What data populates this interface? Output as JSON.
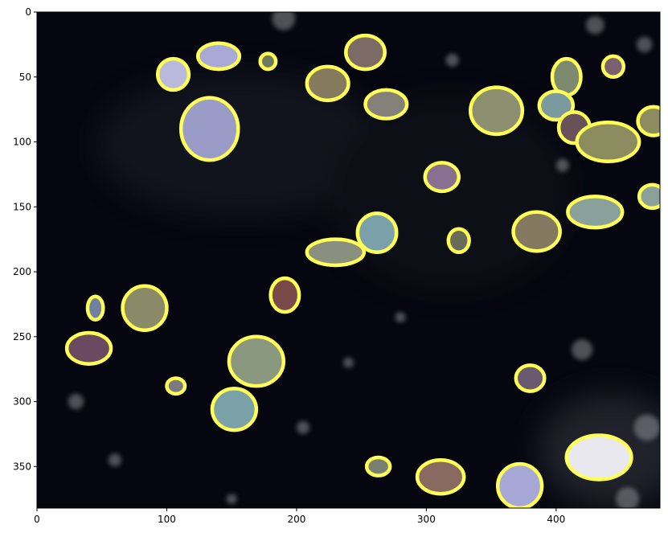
{
  "chart_data": {
    "type": "image",
    "title": "",
    "xlabel": "",
    "ylabel": "",
    "xlim": [
      0,
      480
    ],
    "ylim": [
      382,
      0
    ],
    "x_ticks": [
      "0",
      "100",
      "200",
      "300",
      "400"
    ],
    "y_ticks": [
      "0",
      "50",
      "100",
      "150",
      "200",
      "250",
      "300",
      "350"
    ],
    "x_tick_values": [
      0,
      100,
      200,
      300,
      400
    ],
    "y_tick_values": [
      0,
      50,
      100,
      150,
      200,
      250,
      300,
      350
    ]
  },
  "image": {
    "background_color": "#05060f",
    "outline_color": "#ffff55",
    "cells": [
      {
        "cx": 105,
        "cy": 48,
        "rx": 12,
        "ry": 12,
        "fill": "#b9b9dc"
      },
      {
        "cx": 140,
        "cy": 34,
        "rx": 16,
        "ry": 10,
        "fill": "#a9a9d8"
      },
      {
        "cx": 178,
        "cy": 38,
        "rx": 6,
        "ry": 6,
        "fill": "#6f7a5e"
      },
      {
        "cx": 253,
        "cy": 31,
        "rx": 15,
        "ry": 13,
        "fill": "#7b6a65"
      },
      {
        "cx": 224,
        "cy": 55,
        "rx": 16,
        "ry": 13,
        "fill": "#857a5e"
      },
      {
        "cx": 269,
        "cy": 71,
        "rx": 16,
        "ry": 11,
        "fill": "#85807a"
      },
      {
        "cx": 133,
        "cy": 90,
        "rx": 22,
        "ry": 24,
        "fill": "#9b9bc8"
      },
      {
        "cx": 354,
        "cy": 76,
        "rx": 20,
        "ry": 18,
        "fill": "#8c9070"
      },
      {
        "cx": 408,
        "cy": 50,
        "rx": 11,
        "ry": 14,
        "fill": "#7d8a70"
      },
      {
        "cx": 444,
        "cy": 42,
        "rx": 8,
        "ry": 8,
        "fill": "#7a6070"
      },
      {
        "cx": 400,
        "cy": 72,
        "rx": 13,
        "ry": 11,
        "fill": "#7a9aa0"
      },
      {
        "cx": 414,
        "cy": 89,
        "rx": 12,
        "ry": 12,
        "fill": "#6a5058"
      },
      {
        "cx": 440,
        "cy": 100,
        "rx": 24,
        "ry": 15,
        "fill": "#8c8c60"
      },
      {
        "cx": 475,
        "cy": 84,
        "rx": 12,
        "ry": 11,
        "fill": "#8c8c60"
      },
      {
        "cx": 312,
        "cy": 127,
        "rx": 13,
        "ry": 11,
        "fill": "#8a7090"
      },
      {
        "cx": 430,
        "cy": 154,
        "rx": 21,
        "ry": 12,
        "fill": "#8aa09a"
      },
      {
        "cx": 385,
        "cy": 169,
        "rx": 18,
        "ry": 15,
        "fill": "#857860"
      },
      {
        "cx": 474,
        "cy": 142,
        "rx": 10,
        "ry": 9,
        "fill": "#8aa09a"
      },
      {
        "cx": 262,
        "cy": 170,
        "rx": 15,
        "ry": 15,
        "fill": "#7aa0aa"
      },
      {
        "cx": 230,
        "cy": 185,
        "rx": 22,
        "ry": 10,
        "fill": "#8a9080"
      },
      {
        "cx": 325,
        "cy": 176,
        "rx": 8,
        "ry": 9,
        "fill": "#6a6a58"
      },
      {
        "cx": 191,
        "cy": 218,
        "rx": 11,
        "ry": 13,
        "fill": "#7a4a48"
      },
      {
        "cx": 45,
        "cy": 228,
        "rx": 6,
        "ry": 9,
        "fill": "#7080a0"
      },
      {
        "cx": 83,
        "cy": 228,
        "rx": 17,
        "ry": 17,
        "fill": "#8a8a68"
      },
      {
        "cx": 40,
        "cy": 259,
        "rx": 17,
        "ry": 12,
        "fill": "#6a4a60"
      },
      {
        "cx": 169,
        "cy": 269,
        "rx": 21,
        "ry": 19,
        "fill": "#8a9880"
      },
      {
        "cx": 107,
        "cy": 288,
        "rx": 7,
        "ry": 6,
        "fill": "#7a7a80"
      },
      {
        "cx": 152,
        "cy": 306,
        "rx": 17,
        "ry": 16,
        "fill": "#7aa0a8"
      },
      {
        "cx": 380,
        "cy": 282,
        "rx": 11,
        "ry": 10,
        "fill": "#6a5a70"
      },
      {
        "cx": 263,
        "cy": 350,
        "rx": 9,
        "ry": 7,
        "fill": "#7a8070"
      },
      {
        "cx": 311,
        "cy": 358,
        "rx": 18,
        "ry": 13,
        "fill": "#8a6a60"
      },
      {
        "cx": 372,
        "cy": 365,
        "rx": 17,
        "ry": 17,
        "fill": "#a8a8d8"
      },
      {
        "cx": 433,
        "cy": 343,
        "rx": 25,
        "ry": 17,
        "fill": "#e8e8ee"
      }
    ],
    "specks": [
      {
        "cx": 190,
        "cy": 5,
        "r": 9
      },
      {
        "cx": 320,
        "cy": 37,
        "r": 5
      },
      {
        "cx": 430,
        "cy": 10,
        "r": 7
      },
      {
        "cx": 468,
        "cy": 25,
        "r": 6
      },
      {
        "cx": 30,
        "cy": 300,
        "r": 6
      },
      {
        "cx": 420,
        "cy": 260,
        "r": 8
      },
      {
        "cx": 470,
        "cy": 320,
        "r": 10
      },
      {
        "cx": 60,
        "cy": 345,
        "r": 5
      },
      {
        "cx": 205,
        "cy": 320,
        "r": 5
      },
      {
        "cx": 240,
        "cy": 270,
        "r": 4
      },
      {
        "cx": 405,
        "cy": 118,
        "r": 5
      },
      {
        "cx": 455,
        "cy": 375,
        "r": 9
      },
      {
        "cx": 150,
        "cy": 375,
        "r": 4
      },
      {
        "cx": 280,
        "cy": 235,
        "r": 4
      }
    ]
  }
}
